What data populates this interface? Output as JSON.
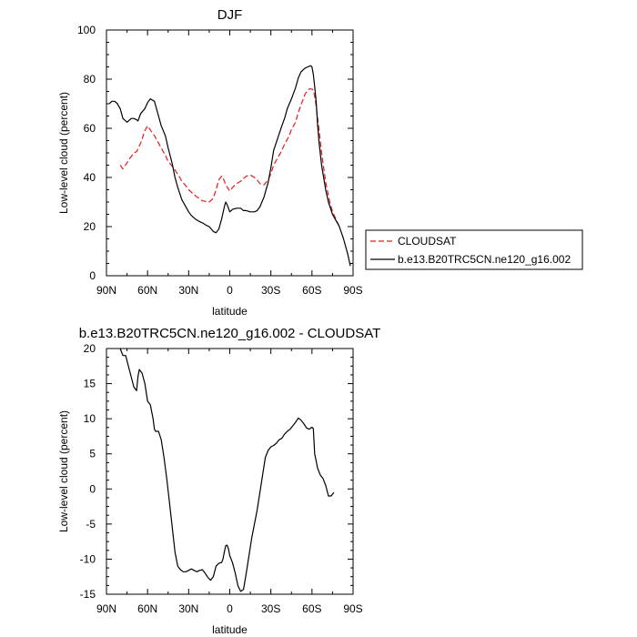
{
  "chart_data": [
    {
      "type": "line",
      "title": "DJF",
      "xlabel": "latitude",
      "ylabel": "Low-level cloud (percent)",
      "xlim": [
        90,
        -90
      ],
      "ylim": [
        0,
        100
      ],
      "x_ticks": [
        90,
        60,
        30,
        0,
        -30,
        -60,
        -90
      ],
      "x_tick_labels": [
        "90N",
        "60N",
        "30N",
        "0",
        "30S",
        "60S",
        "90S"
      ],
      "y_ticks": [
        0,
        20,
        40,
        60,
        80,
        100
      ],
      "y_tick_labels": [
        "0",
        "20",
        "40",
        "60",
        "80",
        "100"
      ],
      "legend": {
        "placement": "right"
      },
      "series": [
        {
          "name": "CLOUDSAT",
          "color": "#e41a1c",
          "dash": "dashed",
          "x": [
            80,
            78,
            75,
            72,
            70,
            68,
            65,
            62,
            60,
            57,
            55,
            52,
            50,
            47,
            45,
            42,
            40,
            37,
            35,
            32,
            30,
            25,
            20,
            15,
            12,
            10,
            8,
            6,
            5,
            3,
            0,
            -3,
            -5,
            -8,
            -10,
            -12,
            -15,
            -18,
            -20,
            -22,
            -25,
            -28,
            -30,
            -32,
            -35,
            -38,
            -40,
            -43,
            -45,
            -48,
            -50,
            -53,
            -55,
            -57,
            -58,
            -60,
            -61,
            -62,
            -63,
            -65,
            -67,
            -70,
            -73,
            -75,
            -78,
            -80
          ],
          "values": [
            45,
            43.5,
            46,
            48.5,
            50,
            50.5,
            54,
            59,
            61,
            58.5,
            57,
            54,
            52,
            49,
            46.5,
            44.5,
            43,
            40.5,
            38.5,
            36.5,
            35,
            32.5,
            30.5,
            30,
            31.5,
            35,
            39,
            40.5,
            40,
            37,
            34.5,
            36.5,
            37.5,
            38.5,
            39.5,
            40.5,
            41,
            40,
            39,
            37.5,
            37,
            39,
            41.5,
            45,
            48,
            51,
            53.5,
            56.5,
            59.5,
            62.5,
            66.5,
            71,
            74,
            75.5,
            76,
            76,
            75.5,
            73,
            69,
            60,
            50,
            38,
            30,
            26,
            22.5,
            20
          ]
        },
        {
          "name": "b.e13.B20TRC5CN.ne120_g16.002",
          "color": "#000000",
          "dash": "solid",
          "x": [
            88,
            86,
            84,
            82,
            80,
            78,
            75,
            72,
            70,
            68,
            67,
            65,
            62,
            60,
            58,
            55,
            52,
            50,
            47,
            45,
            42,
            40,
            38,
            35,
            32,
            30,
            28,
            25,
            22,
            20,
            17,
            15,
            12,
            10,
            8,
            6,
            4,
            3,
            2,
            0,
            -2,
            -5,
            -8,
            -10,
            -12,
            -15,
            -18,
            -20,
            -22,
            -25,
            -28,
            -30,
            -32,
            -35,
            -38,
            -40,
            -42,
            -45,
            -48,
            -50,
            -52,
            -55,
            -57,
            -59,
            -60,
            -61,
            -62,
            -63,
            -64,
            -65,
            -67,
            -70,
            -72,
            -75,
            -78,
            -80,
            -83,
            -86,
            -88
          ],
          "values": [
            70,
            71,
            71,
            70,
            68,
            64,
            62.5,
            64,
            64,
            63.5,
            63,
            66,
            68,
            70.5,
            72,
            71,
            65,
            61,
            57,
            52,
            45.5,
            40,
            36,
            31,
            28,
            26,
            24.5,
            23,
            22,
            21.5,
            20.5,
            20,
            18,
            17.5,
            19,
            23,
            28,
            30,
            29,
            26,
            27,
            27.5,
            27.5,
            26.5,
            26.5,
            26,
            26,
            26.5,
            28,
            32,
            38,
            44,
            51,
            56,
            61,
            64,
            68,
            72,
            76.5,
            80.5,
            83,
            84.5,
            85,
            85.5,
            85,
            82,
            77,
            71,
            62,
            55,
            45,
            35,
            30,
            25,
            22,
            20,
            15,
            9,
            4
          ]
        }
      ]
    },
    {
      "type": "line",
      "title": "b.e13.B20TRC5CN.ne120_g16.002 - CLOUDSAT",
      "xlabel": "latitude",
      "ylabel": "Low-level cloud (percent)",
      "xlim": [
        90,
        -90
      ],
      "ylim": [
        -15,
        20
      ],
      "x_ticks": [
        90,
        60,
        30,
        0,
        -30,
        -60,
        -90
      ],
      "x_tick_labels": [
        "90N",
        "60N",
        "30N",
        "0",
        "30S",
        "60S",
        "90S"
      ],
      "y_ticks": [
        -15,
        -10,
        -5,
        0,
        5,
        10,
        15,
        20
      ],
      "y_tick_labels": [
        "-15",
        "-10",
        "-5",
        "0",
        "5",
        "10",
        "15",
        "20"
      ],
      "series": [
        {
          "color": "#000000",
          "dash": "solid",
          "x": [
            80,
            79,
            78,
            76,
            74,
            72,
            70,
            68,
            67,
            66,
            64,
            62,
            60,
            58,
            56,
            55,
            54,
            52,
            50,
            48,
            46,
            44,
            42,
            40,
            38,
            36,
            34,
            32,
            30,
            28,
            26,
            24,
            22,
            20,
            18,
            16,
            14,
            12,
            10,
            9,
            8,
            7,
            6,
            5,
            4,
            3,
            2,
            1,
            0,
            -2,
            -4,
            -6,
            -8,
            -10,
            -12,
            -14,
            -16,
            -18,
            -20,
            -22,
            -24,
            -26,
            -28,
            -30,
            -32,
            -34,
            -36,
            -38,
            -40,
            -42,
            -44,
            -46,
            -48,
            -50,
            -52,
            -54,
            -56,
            -58,
            -60,
            -61,
            -62,
            -63,
            -64,
            -65,
            -66,
            -68,
            -70,
            -72,
            -74,
            -76
          ],
          "values": [
            20,
            19.5,
            19,
            19,
            17.5,
            16,
            14.5,
            14,
            16,
            17,
            16.5,
            15,
            12.5,
            12,
            10,
            8.5,
            8.2,
            8.2,
            7,
            4.5,
            1.5,
            -2,
            -5.5,
            -9,
            -11,
            -11.5,
            -11.8,
            -11.8,
            -11.6,
            -11.4,
            -11.6,
            -11.8,
            -11.6,
            -11.5,
            -12,
            -12.6,
            -13,
            -12.5,
            -11,
            -10.8,
            -10.6,
            -10.5,
            -10.5,
            -10,
            -9,
            -8.1,
            -8,
            -8.5,
            -9.5,
            -10.5,
            -12,
            -13.8,
            -14.6,
            -14.3,
            -12,
            -9.5,
            -7,
            -5,
            -3,
            -0.5,
            2,
            4.5,
            5.5,
            6,
            6.2,
            6.5,
            7,
            7.2,
            7.8,
            8.2,
            8.5,
            9,
            9.5,
            10.1,
            9.8,
            9.3,
            8.7,
            8.5,
            8.8,
            8.6,
            5,
            4,
            3,
            2.5,
            2,
            1.5,
            0.5,
            -1,
            -1,
            -0.5
          ]
        }
      ]
    }
  ]
}
